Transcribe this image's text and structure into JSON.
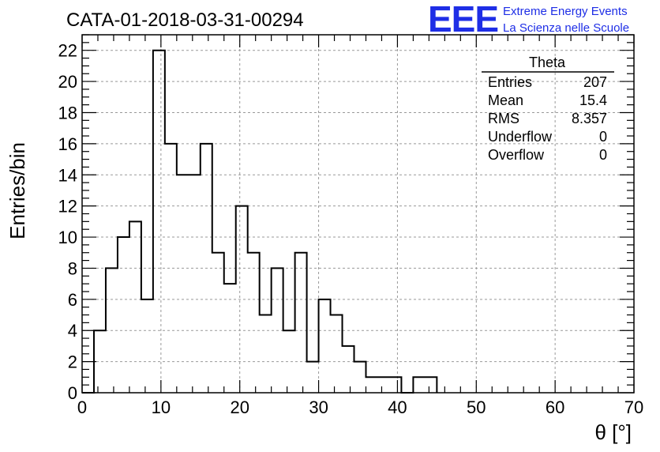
{
  "header": {
    "title": "CATA-01-2018-03-31-00294",
    "logo_text": "EEE",
    "logo_line1": "Extreme Energy Events",
    "logo_line2": "La Scienza nelle Scuole"
  },
  "stats": {
    "name": "Theta",
    "rows": [
      {
        "label": "Entries",
        "value": "207"
      },
      {
        "label": "Mean",
        "value": "15.4"
      },
      {
        "label": "RMS",
        "value": "8.357"
      },
      {
        "label": "Underflow",
        "value": "0"
      },
      {
        "label": "Overflow",
        "value": "0"
      }
    ]
  },
  "colors": {
    "accent": "#1e2ee6",
    "line": "#000000",
    "grid": "#999999"
  },
  "chart_data": {
    "type": "bar",
    "histogram": true,
    "title": "CATA-01-2018-03-31-00294",
    "xlabel": "θ [°]",
    "ylabel": "Entries/bin",
    "xlim": [
      0,
      70
    ],
    "ylim": [
      0,
      23
    ],
    "bin_width": 1.5,
    "bin_edges": [
      0,
      1.5,
      3,
      4.5,
      6,
      7.5,
      9,
      10.5,
      12,
      13.5,
      15,
      16.5,
      18,
      19.5,
      21,
      22.5,
      24,
      25.5,
      27,
      28.5,
      30,
      31.5,
      33,
      34.5,
      36,
      37.5,
      39,
      40.5,
      42,
      43.5
    ],
    "values": [
      0,
      4,
      8,
      10,
      11,
      6,
      22,
      16,
      14,
      14,
      16,
      9,
      7,
      12,
      9,
      5,
      8,
      4,
      9,
      2,
      6,
      5,
      3,
      2,
      1,
      1,
      1,
      0,
      1,
      1
    ],
    "x_ticks": [
      0,
      10,
      20,
      30,
      40,
      50,
      60,
      70
    ],
    "y_ticks": [
      0,
      2,
      4,
      6,
      8,
      10,
      12,
      14,
      16,
      18,
      20,
      22
    ],
    "grid": true,
    "legend": "top-right"
  }
}
